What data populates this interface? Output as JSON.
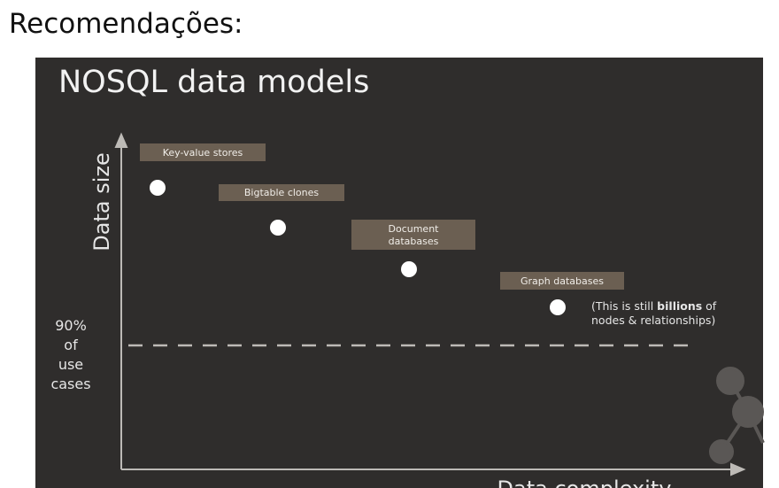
{
  "heading": "Recomendações:",
  "slide": {
    "title": "NOSQL data models",
    "y_axis_label": "Data size",
    "x_axis_label": "Data complexity",
    "threshold_label": [
      "90%",
      "of",
      "use",
      "cases"
    ],
    "nodes": [
      {
        "label_lines": [
          "Key-value stores"
        ]
      },
      {
        "label_lines": [
          "Bigtable clones"
        ]
      },
      {
        "label_lines": [
          "Document",
          "databases"
        ]
      },
      {
        "label_lines": [
          "Graph databases"
        ]
      }
    ],
    "note": {
      "line1_start": "(This is still ",
      "line1_bold": "billions",
      "line1_end": " of",
      "line2": "nodes & relationships)"
    }
  }
}
